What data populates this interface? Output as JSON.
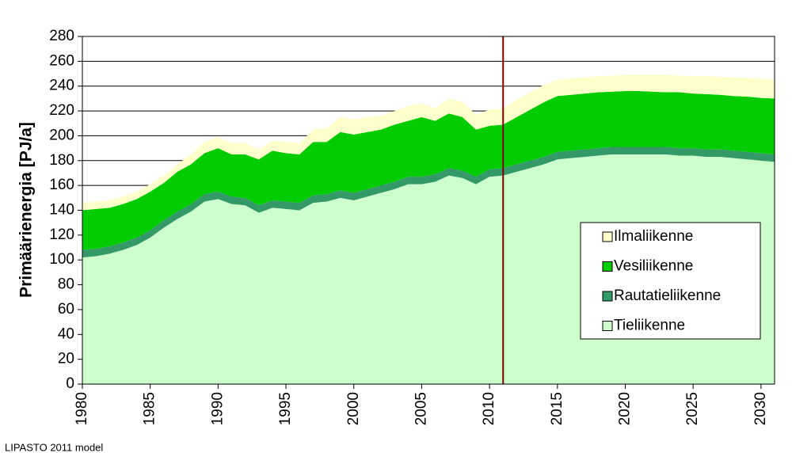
{
  "chart_data": {
    "type": "stacked_area",
    "y_label": "Primäärienergia [PJ/a]",
    "footnote": "LIPASTO 2011 model",
    "x": [
      1980,
      1981,
      1982,
      1983,
      1984,
      1985,
      1986,
      1987,
      1988,
      1989,
      1990,
      1991,
      1992,
      1993,
      1994,
      1995,
      1996,
      1997,
      1998,
      1999,
      2000,
      2001,
      2002,
      2003,
      2004,
      2005,
      2006,
      2007,
      2008,
      2009,
      2010,
      2011,
      2012,
      2013,
      2014,
      2015,
      2016,
      2017,
      2018,
      2019,
      2020,
      2021,
      2022,
      2023,
      2024,
      2025,
      2026,
      2027,
      2028,
      2029,
      2030,
      2031
    ],
    "xlim": [
      1980,
      2031
    ],
    "xticks": [
      1980,
      1985,
      1990,
      1995,
      2000,
      2005,
      2010,
      2015,
      2020,
      2025,
      2030
    ],
    "ylim": [
      0,
      280
    ],
    "yticks": [
      0,
      20,
      40,
      60,
      80,
      100,
      120,
      140,
      160,
      180,
      200,
      220,
      240,
      260,
      280
    ],
    "grid": true,
    "vline": {
      "x": 2011,
      "color": "#800000"
    },
    "legend_position": "lower right",
    "series": [
      {
        "name": "Tieliikenne",
        "color": "#ccffcc",
        "values": [
          102,
          103,
          105,
          108,
          112,
          118,
          126,
          133,
          139,
          147,
          149,
          145,
          144,
          138,
          142,
          141,
          140,
          146,
          147,
          150,
          148,
          151,
          154,
          157,
          161,
          161,
          163,
          168,
          166,
          161,
          167,
          168,
          171,
          174,
          177,
          181,
          182,
          183,
          184,
          185,
          185,
          185,
          185,
          185,
          184,
          184,
          183,
          183,
          182,
          181,
          180,
          179
        ]
      },
      {
        "name": "Rautatieliikenne",
        "color": "#339966",
        "values": [
          6,
          6,
          6,
          6,
          6,
          6,
          6,
          6,
          6,
          6,
          6,
          6,
          6,
          6,
          6,
          6,
          6,
          6,
          6,
          6,
          6,
          6,
          6,
          6,
          6,
          6,
          6,
          6,
          6,
          6,
          6,
          6,
          6,
          6,
          6,
          6,
          6,
          6,
          6,
          6,
          6,
          6,
          6,
          6,
          6,
          6,
          6,
          6,
          6,
          6,
          6,
          6
        ]
      },
      {
        "name": "Vesiliikenne",
        "color": "#00cc00",
        "values": [
          32,
          32,
          31,
          31,
          31,
          31,
          30,
          32,
          32,
          33,
          35,
          34,
          35,
          37,
          40,
          39,
          39,
          43,
          42,
          47,
          47,
          46,
          45,
          46,
          45,
          48,
          43,
          44,
          43,
          38,
          35,
          35,
          38,
          41,
          44,
          45,
          45,
          45,
          45,
          44.5,
          45,
          45,
          44.5,
          44,
          45,
          44,
          44.5,
          44,
          44,
          44.5,
          44.5,
          45
        ]
      },
      {
        "name": "Ilmaliikenne",
        "color": "#ffffcc",
        "values": [
          6,
          6,
          6,
          6,
          6,
          6,
          6,
          6,
          8,
          9,
          9,
          9,
          9,
          8,
          8,
          9,
          9,
          10,
          11,
          12,
          12,
          12,
          11,
          11,
          12,
          11,
          10,
          12,
          12,
          12,
          13,
          13,
          14,
          14,
          14,
          13,
          13,
          13,
          13,
          13,
          13,
          13,
          13.5,
          14,
          13.5,
          14,
          14.5,
          14.5,
          15,
          15,
          15.5,
          15
        ]
      }
    ]
  }
}
